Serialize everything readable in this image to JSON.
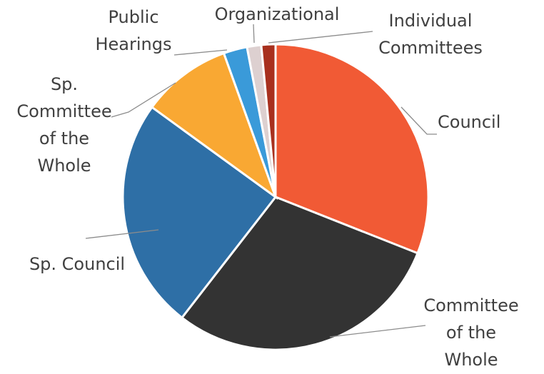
{
  "chart_data": {
    "type": "pie",
    "title": "",
    "legend": "none",
    "slices": [
      {
        "label": [
          "Council"
        ],
        "value": 31.0,
        "color": "#f15a35"
      },
      {
        "label": [
          "Committee",
          "of the",
          "Whole"
        ],
        "value": 29.5,
        "color": "#333333"
      },
      {
        "label": [
          "Sp. Council"
        ],
        "value": 24.5,
        "color": "#2e6fa6"
      },
      {
        "label": [
          "Sp.",
          "Committee",
          "of the",
          "Whole"
        ],
        "value": 9.5,
        "color": "#f9a833"
      },
      {
        "label": [
          "Public",
          "Hearings"
        ],
        "value": 2.5,
        "color": "#3a9ad9"
      },
      {
        "label": [
          "Organizational"
        ],
        "value": 1.5,
        "color": "#ddd0d0"
      },
      {
        "label": [
          "Individual",
          "Committees"
        ],
        "value": 1.5,
        "color": "#a8301e"
      }
    ]
  }
}
